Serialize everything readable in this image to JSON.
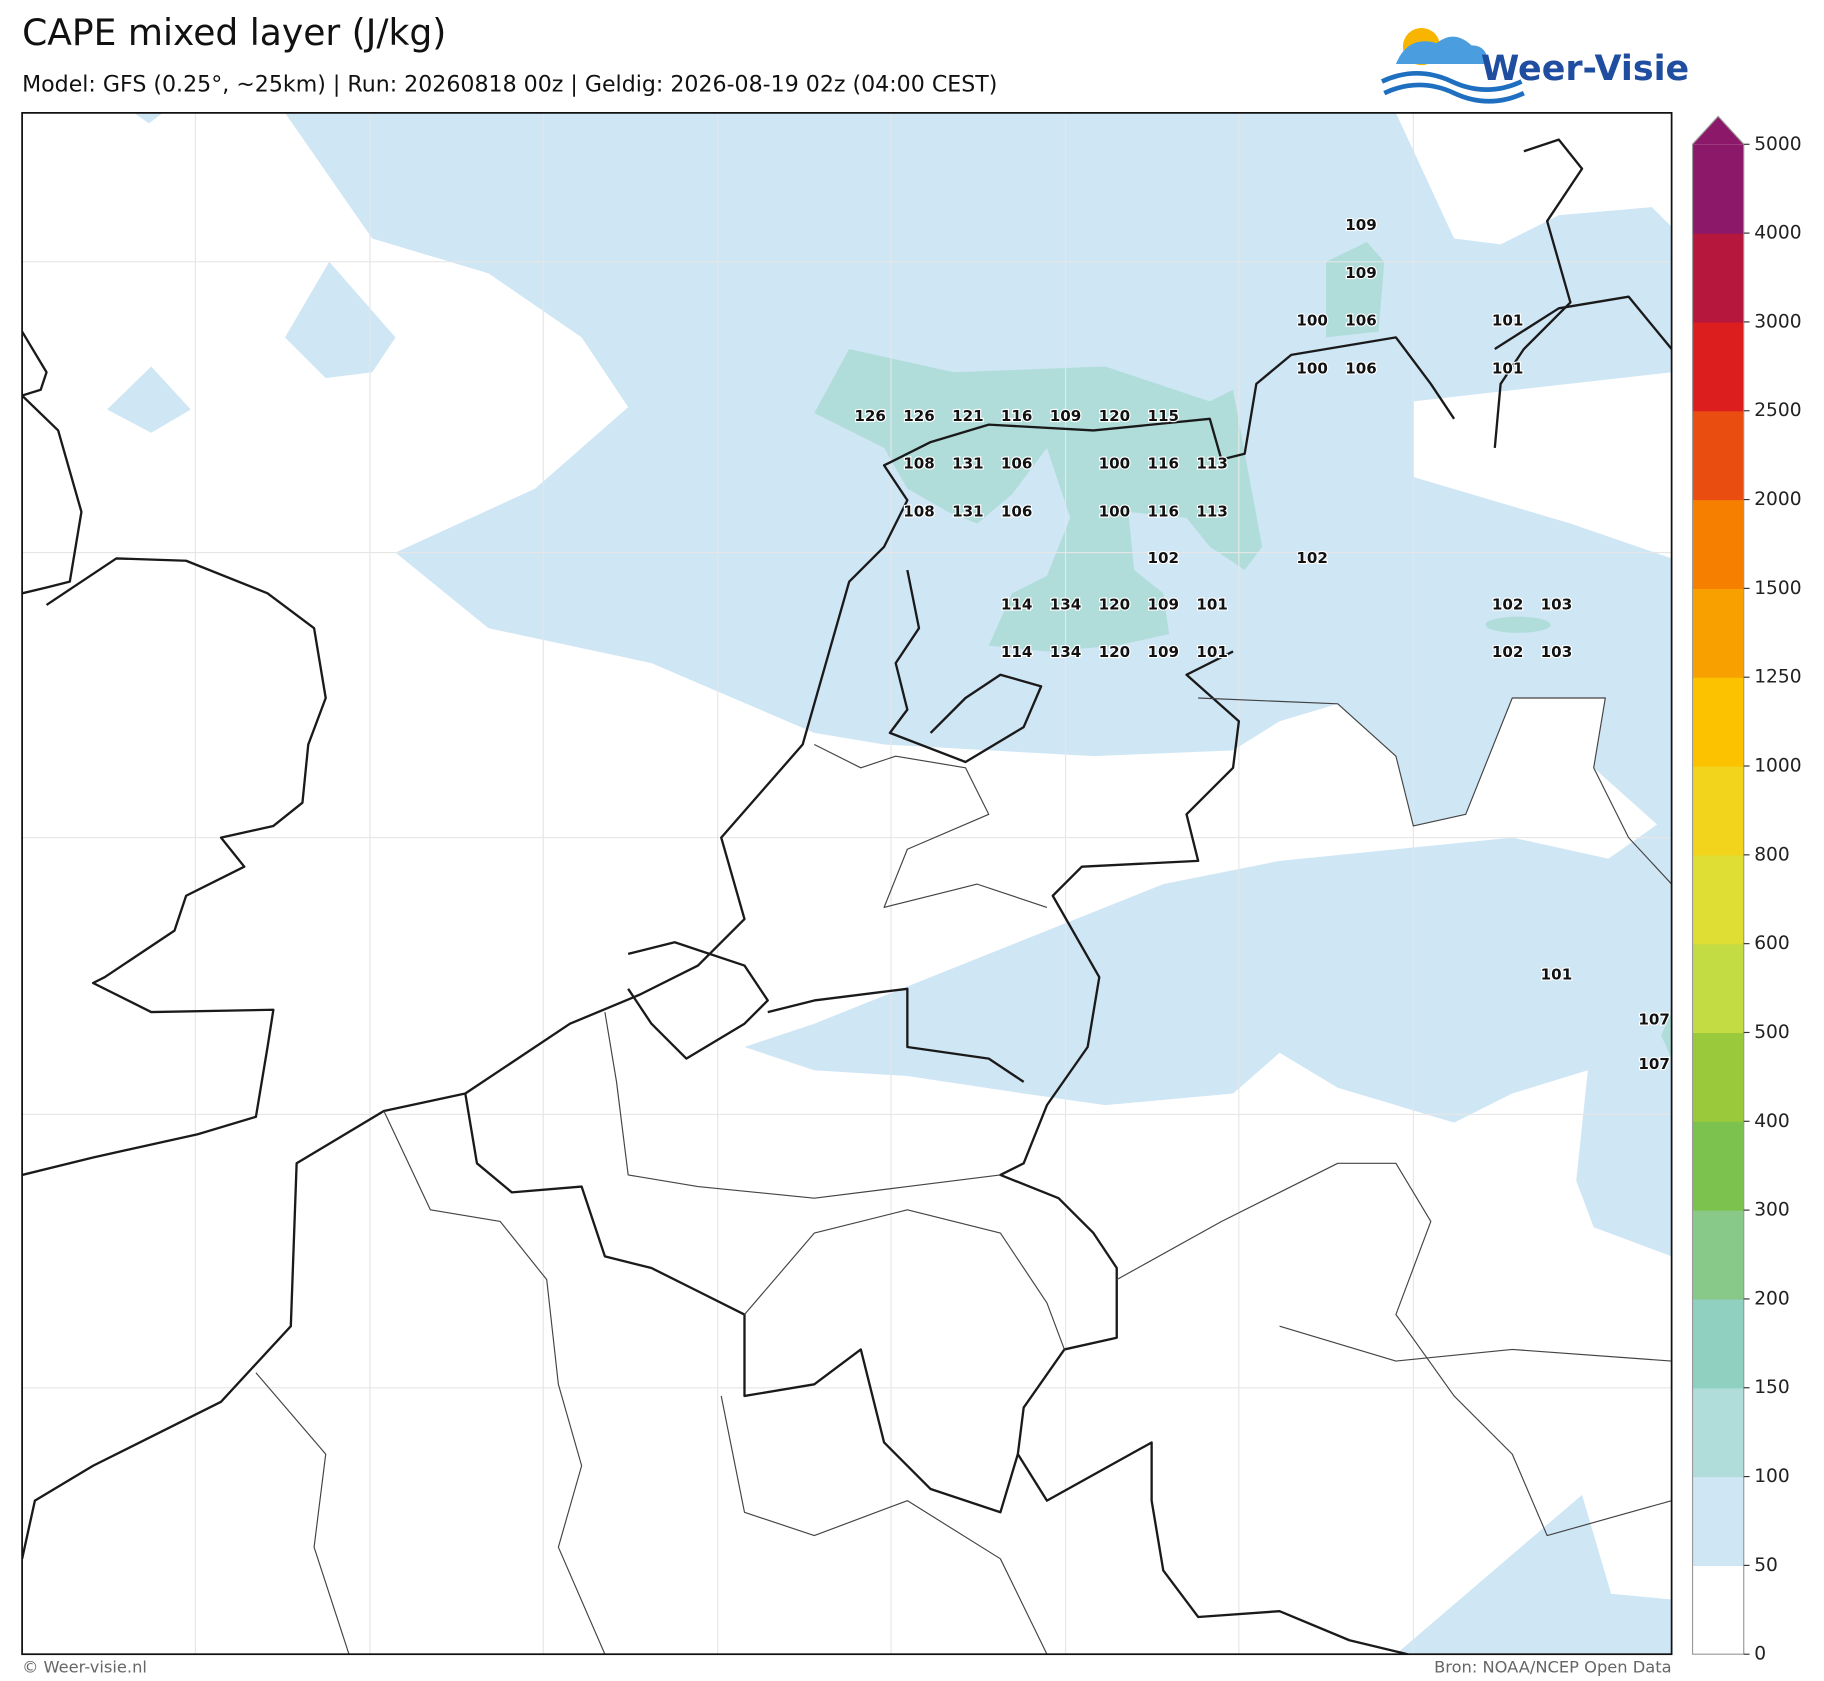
{
  "header": {
    "title": "CAPE mixed layer (J/kg)",
    "subtitle": "Model: GFS (0.25°, ~25km)  |  Run: 20260818 00z  |  Geldig: 2026-08-19 02z (04:00 CEST)"
  },
  "logo": {
    "text": "Weer-Visie"
  },
  "map": {
    "labels": [
      109,
      109,
      100,
      106,
      101,
      100,
      106,
      101,
      126,
      126,
      121,
      116,
      109,
      120,
      115,
      108,
      131,
      106,
      100,
      116,
      113,
      108,
      131,
      106,
      100,
      116,
      113,
      102,
      102,
      114,
      134,
      120,
      109,
      101,
      102,
      103,
      114,
      134,
      120,
      109,
      101,
      102,
      103,
      101,
      107,
      107
    ]
  },
  "colorbar": {
    "ticks": [
      0,
      50,
      100,
      150,
      200,
      300,
      400,
      500,
      600,
      800,
      1000,
      1250,
      1500,
      2000,
      2500,
      3000,
      4000,
      5000
    ],
    "colors": [
      "#ffffff",
      "#cfe6f5",
      "#b0ddd9",
      "#8fd0c0",
      "#88c98a",
      "#7cc24f",
      "#9ac93c",
      "#c4dc44",
      "#dede35",
      "#f1d41b",
      "#fcc200",
      "#f8a000",
      "#f67f00",
      "#ea4d10",
      "#dd1e1e",
      "#b5173d",
      "#8b1868"
    ]
  },
  "footer": {
    "copyright": "© Weer-visie.nl",
    "source": "Bron: NOAA/NCEP Open Data"
  }
}
